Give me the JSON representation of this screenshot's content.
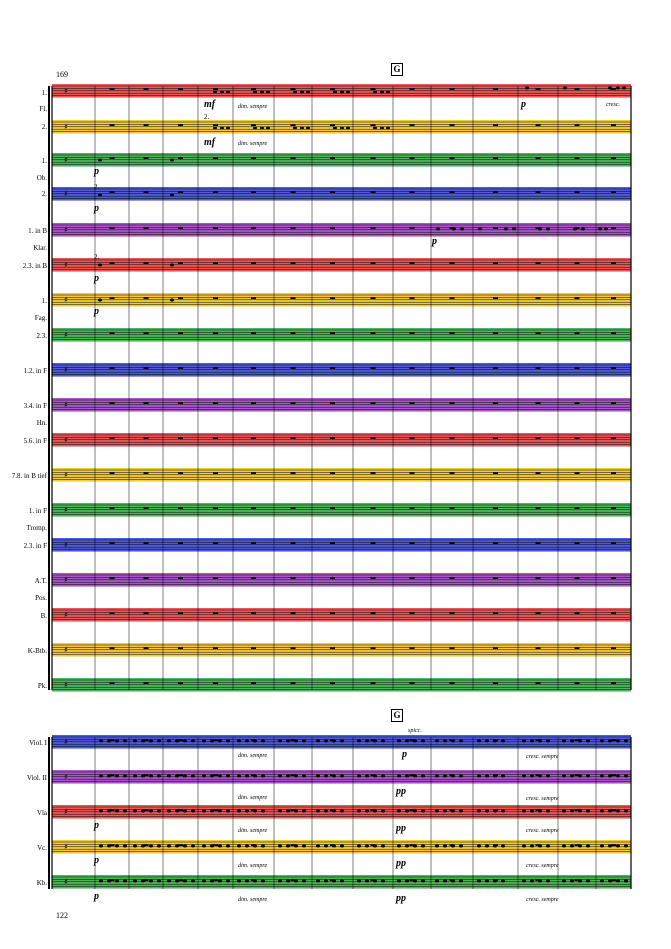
{
  "page": {
    "measure_number": "169",
    "page_number": "122",
    "rehearsal_mark": "G"
  },
  "colors": {
    "red": "#e83b3b",
    "yellow": "#f2c21b",
    "green": "#2eaa3f",
    "blue": "#2f3fd6",
    "purple": "#9a3cbf"
  },
  "instruments": {
    "fl_1": "1.",
    "fl": "Fl.",
    "fl_2": "2.",
    "ob_1": "1.",
    "ob": "Ob.",
    "ob_2": "2.",
    "kl_1": "1. in B",
    "kl": "Klar.",
    "kl_23": "2.3. in B",
    "fag_1": "1.",
    "fag": "Fag.",
    "fag_23": "2.3.",
    "hn_12": "1.2. in F",
    "hn_34": "3.4. in F",
    "hn": "Hn.",
    "hn_56": "5.6. in F",
    "hn_78": "7.8. in B tief",
    "tr_1": "1. in F",
    "tromp": "Tromp.",
    "tr_23": "2.3. in F",
    "pos_at": "A.T.",
    "pos": "Pos.",
    "pos_b": "B.",
    "kbtb": "K-Btb.",
    "pk": "Pk.",
    "vl1": "Viol. I",
    "vl2": "Viol. II",
    "vla": "Vla",
    "vc": "Vc.",
    "kb": "Kb."
  },
  "markings": {
    "mf": "mf",
    "p": "p",
    "pp": "pp",
    "dim_sempre": "dim. sempre",
    "cresc": "cresc.",
    "cresc_sempre": "cresc. sempre",
    "spicc": "spicc.",
    "two": "2."
  }
}
